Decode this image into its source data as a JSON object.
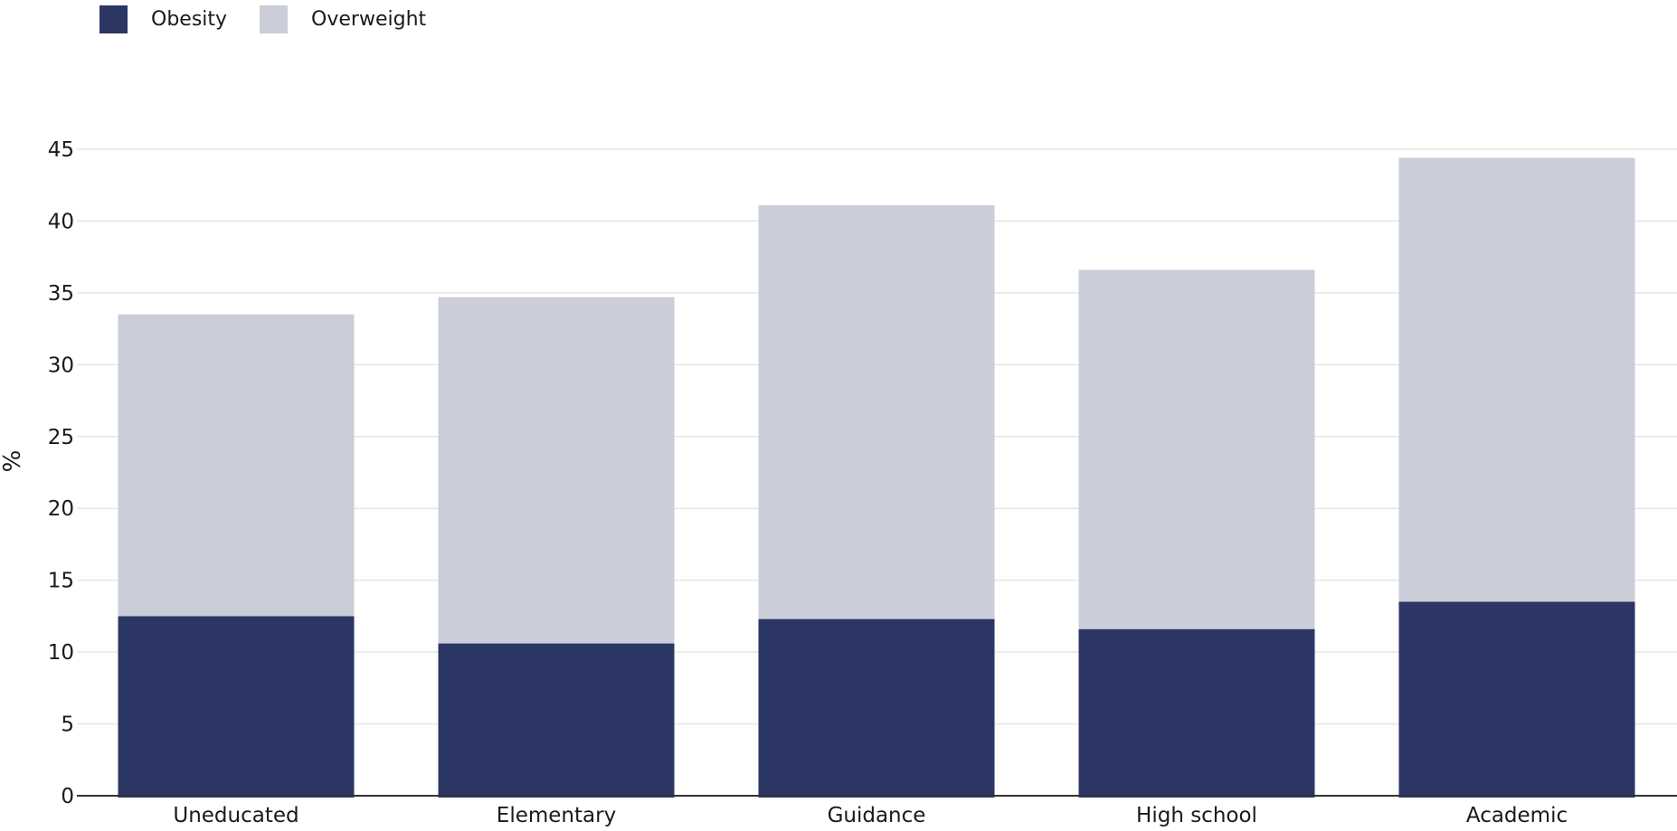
{
  "legend": {
    "items": [
      {
        "label": "Obesity",
        "color": "#2b3664"
      },
      {
        "label": "Overweight",
        "color": "#cbcdd9"
      }
    ]
  },
  "chart_data": {
    "type": "bar",
    "stacked": true,
    "categories": [
      "Uneducated",
      "Elementary",
      "Guidance",
      "High school",
      "Academic"
    ],
    "series": [
      {
        "name": "Obesity",
        "values": [
          12.5,
          10.6,
          12.3,
          11.6,
          13.5
        ],
        "color": "#2b3664"
      },
      {
        "name": "Overweight",
        "values": [
          21.0,
          24.1,
          28.8,
          25.0,
          30.9
        ],
        "color": "#cbcdd9"
      }
    ],
    "ylabel": "%",
    "xlabel": "",
    "ylim": [
      0,
      45
    ],
    "yticks": [
      0,
      5,
      10,
      15,
      20,
      25,
      30,
      35,
      40,
      45
    ],
    "grid": true,
    "legend_position": "top-left"
  }
}
